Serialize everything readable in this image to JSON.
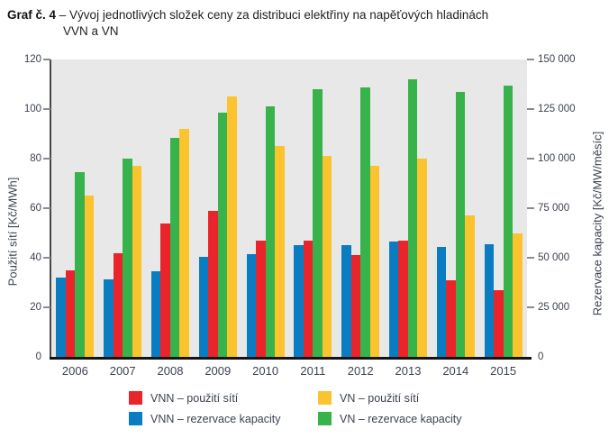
{
  "title": {
    "label": "Graf č. 4",
    "line1": "– Vývoj jednotlivých složek ceny za distribuci elektřiny na napěťových hladinách",
    "line2": "VVN a VN"
  },
  "chart_data": {
    "type": "bar",
    "categories": [
      "2006",
      "2007",
      "2008",
      "2009",
      "2010",
      "2011",
      "2012",
      "2013",
      "2014",
      "2015"
    ],
    "left_axis": {
      "label": "Použití sítí [Kč/MWh]",
      "min": 0,
      "max": 120,
      "tick_labels": [
        "0",
        "20",
        "40",
        "60",
        "80",
        "100",
        "120"
      ]
    },
    "right_axis": {
      "label": "Rezervace kapacity [Kč/MW/měsíc]",
      "min": 0,
      "max": 150000,
      "tick_labels": [
        "0",
        "25 000",
        "50 000",
        "75 000",
        "100 000",
        "125 000",
        "150 000"
      ]
    },
    "grid": false,
    "plot_background": "#e8e8e8",
    "series": [
      {
        "name": "VNN – použití sítí",
        "color": "#e9242a",
        "axis": "left",
        "values": [
          35,
          42,
          54,
          59,
          47,
          47,
          41,
          47,
          31,
          27
        ]
      },
      {
        "name": "VNN – rezervace kapacity",
        "color": "#0a7cc1",
        "axis": "right",
        "values": [
          40000,
          39000,
          43000,
          50500,
          52000,
          56500,
          56500,
          58000,
          55500,
          57000
        ]
      },
      {
        "name": "VN – použití sítí",
        "color": "#fbc32d",
        "axis": "left",
        "values": [
          65,
          77,
          92,
          105,
          85,
          81,
          77,
          80,
          57,
          50
        ]
      },
      {
        "name": "VN – rezervace kapacity",
        "color": "#38b24a",
        "axis": "right",
        "values": [
          93000,
          100000,
          110500,
          123000,
          126500,
          135000,
          136000,
          140000,
          133500,
          137000
        ]
      }
    ],
    "bar_order_series_indices": [
      1,
      0,
      3,
      2
    ]
  },
  "legend": {
    "position": "bottom",
    "columns": [
      {
        "items": [
          {
            "label": "VNN – použití sítí",
            "color": "#e9242a",
            "swatch": "red-swatch"
          },
          {
            "label": "VNN – rezervace kapacity",
            "color": "#0a7cc1",
            "swatch": "blue-swatch"
          }
        ]
      },
      {
        "items": [
          {
            "label": "VN – použití sítí",
            "color": "#fbc32d",
            "swatch": "yellow-swatch"
          },
          {
            "label": "VN – rezervace kapacity",
            "color": "#38b24a",
            "swatch": "green-swatch"
          }
        ]
      }
    ]
  }
}
